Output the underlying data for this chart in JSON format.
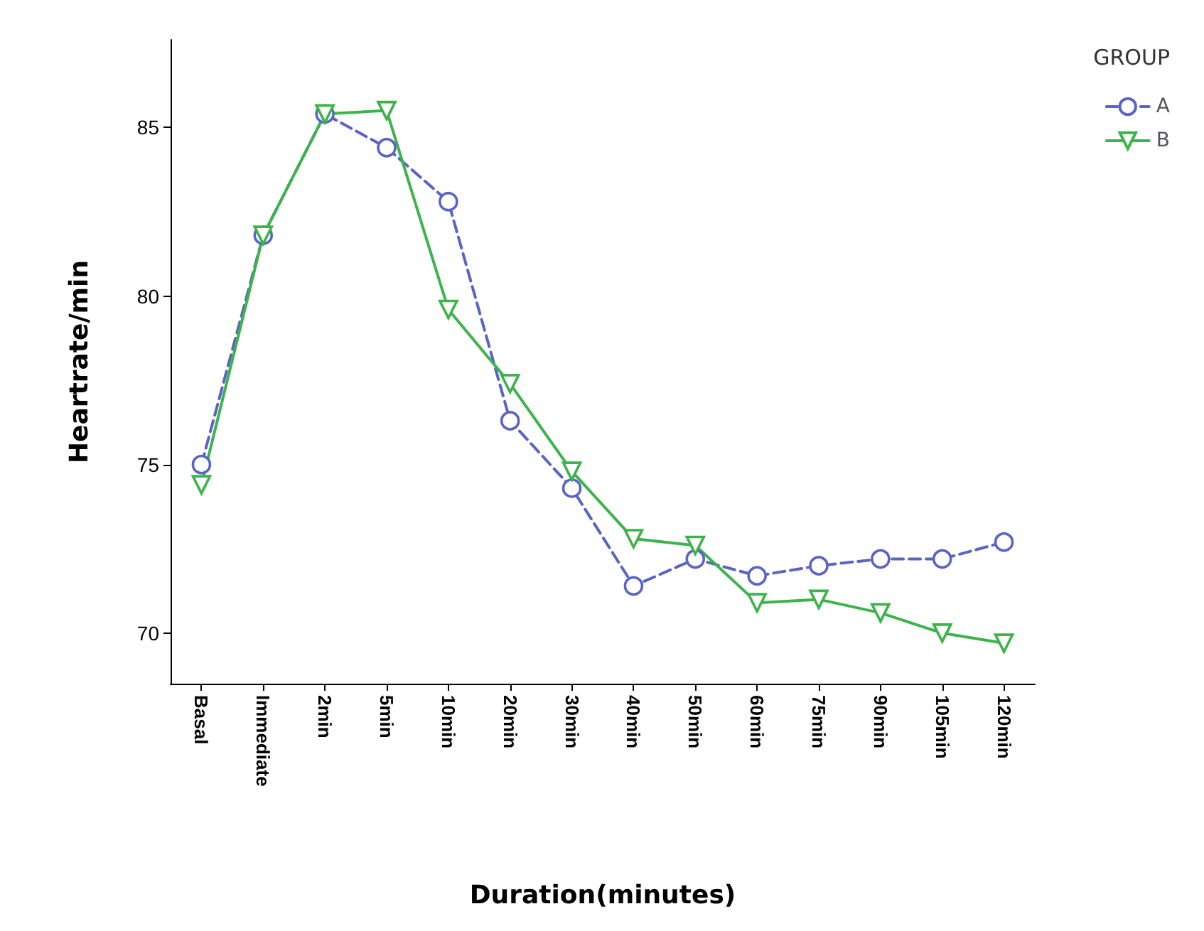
{
  "chart_data": {
    "type": "line",
    "xlabel": "Duration(minutes)",
    "ylabel": "Heartrate/min",
    "legend_title": "GROUP",
    "categories": [
      "Basal",
      "Immediate",
      "2min",
      "5min",
      "10min",
      "20min",
      "30min",
      "40min",
      "50min",
      "60min",
      "75min",
      "90min",
      "105min",
      "120min"
    ],
    "series": [
      {
        "name": "A",
        "color": "#5b63c5",
        "marker": "circle",
        "line_style": "dashed",
        "values": [
          75.0,
          81.8,
          85.4,
          84.4,
          82.8,
          76.3,
          74.3,
          71.4,
          72.2,
          71.7,
          72.0,
          72.2,
          72.2,
          72.7
        ]
      },
      {
        "name": "B",
        "color": "#3cb44b",
        "marker": "triangle",
        "line_style": "solid",
        "values": [
          74.4,
          81.8,
          85.4,
          85.5,
          79.6,
          77.4,
          74.8,
          72.8,
          72.6,
          70.9,
          71.0,
          70.6,
          70.0,
          69.7
        ]
      }
    ],
    "ylim": [
      68.5,
      87.6
    ],
    "yticks": [
      70,
      75,
      80,
      85
    ],
    "grid": false,
    "legend": "right"
  }
}
